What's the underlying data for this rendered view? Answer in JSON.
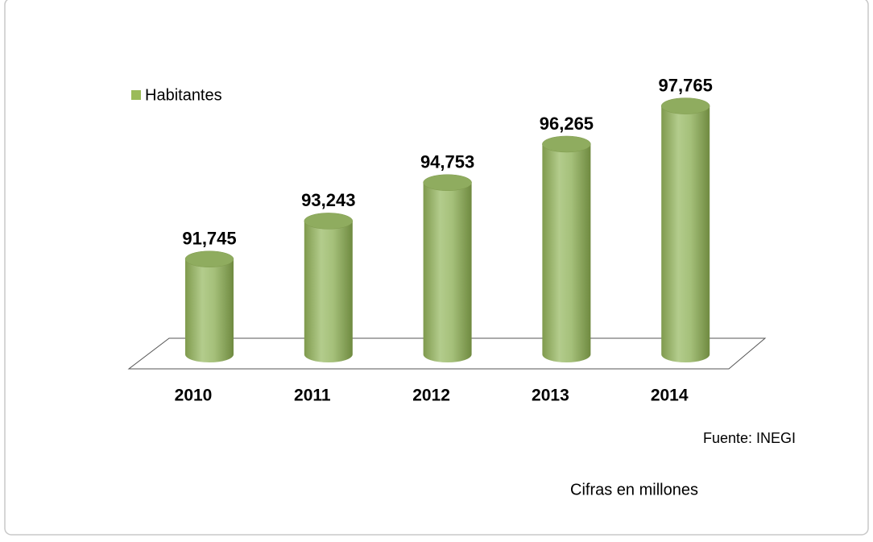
{
  "chart_data": {
    "type": "bar",
    "categories": [
      "2010",
      "2011",
      "2012",
      "2013",
      "2014"
    ],
    "series": [
      {
        "name": "Habitantes",
        "color": "#9bbb59",
        "values": [
          91745,
          93243,
          94753,
          96265,
          97765
        ],
        "value_labels": [
          "91,745",
          "93,243",
          "94,753",
          "96,265",
          "97,765"
        ]
      }
    ],
    "ylim": [
      88000,
      100000
    ],
    "legend": "top-left",
    "annotations": [
      "Fuente: INEGI",
      "Cifras en millones"
    ]
  }
}
